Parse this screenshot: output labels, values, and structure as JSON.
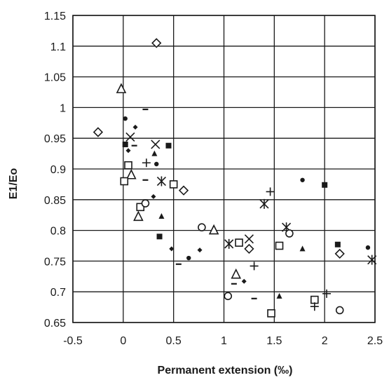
{
  "chart_data": {
    "type": "scatter",
    "xlabel": "Permanent extension (‰)",
    "ylabel": "E1/Eo",
    "xlim": [
      -0.5,
      2.5
    ],
    "ylim": [
      0.65,
      1.15
    ],
    "xticks": [
      "-0.5",
      "0",
      "0.5",
      "1",
      "1.5",
      "2",
      "2.5"
    ],
    "yticks": [
      "0.65",
      "0.7",
      "0.75",
      "0.8",
      "0.85",
      "0.9",
      "0.95",
      "1",
      "1.05",
      "1.1",
      "1.15"
    ],
    "grid": true,
    "legend": "none",
    "colors": {
      "marker": "#1a1a1a",
      "grid": "#1a1a1a",
      "background": "#ffffff"
    },
    "series": [
      {
        "marker": "diamond-open",
        "points": [
          [
            -0.25,
            0.96
          ],
          [
            0.33,
            1.105
          ],
          [
            0.6,
            0.865
          ],
          [
            1.25,
            0.77
          ],
          [
            2.15,
            0.762
          ]
        ]
      },
      {
        "marker": "triangle-open",
        "points": [
          [
            -0.02,
            1.03
          ],
          [
            0.08,
            0.89
          ],
          [
            0.15,
            0.822
          ],
          [
            0.9,
            0.8
          ],
          [
            1.12,
            0.728
          ]
        ]
      },
      {
        "marker": "circle-small-filled",
        "points": [
          [
            0.02,
            0.982
          ],
          [
            0.33,
            0.908
          ],
          [
            0.65,
            0.755
          ],
          [
            1.78,
            0.882
          ],
          [
            2.43,
            0.772
          ]
        ]
      },
      {
        "marker": "diamond-small-filled",
        "points": [
          [
            0.05,
            0.93
          ],
          [
            0.12,
            0.968
          ],
          [
            0.3,
            0.855
          ],
          [
            0.48,
            0.77
          ],
          [
            0.76,
            0.768
          ],
          [
            1.2,
            0.717
          ]
        ]
      },
      {
        "marker": "square-filled",
        "points": [
          [
            0.02,
            0.94
          ],
          [
            0.45,
            0.938
          ],
          [
            0.36,
            0.79
          ],
          [
            2.0,
            0.874
          ],
          [
            2.13,
            0.777
          ]
        ]
      },
      {
        "marker": "square-open",
        "points": [
          [
            0.01,
            0.88
          ],
          [
            0.05,
            0.906
          ],
          [
            0.17,
            0.838
          ],
          [
            0.5,
            0.875
          ],
          [
            1.15,
            0.78
          ],
          [
            1.55,
            0.775
          ],
          [
            1.47,
            0.665
          ],
          [
            1.9,
            0.687
          ]
        ]
      },
      {
        "marker": "x-cross",
        "points": [
          [
            0.07,
            0.952
          ],
          [
            0.32,
            0.94
          ],
          [
            1.25,
            0.786
          ]
        ]
      },
      {
        "marker": "asterisk",
        "points": [
          [
            0.38,
            0.88
          ],
          [
            1.05,
            0.778
          ],
          [
            1.4,
            0.843
          ],
          [
            1.62,
            0.805
          ],
          [
            2.47,
            0.752
          ]
        ]
      },
      {
        "marker": "plus",
        "points": [
          [
            0.23,
            0.91
          ],
          [
            1.3,
            0.742
          ],
          [
            1.46,
            0.863
          ],
          [
            1.9,
            0.676
          ],
          [
            2.02,
            0.697
          ]
        ]
      },
      {
        "marker": "triangle-small-filled",
        "points": [
          [
            0.31,
            0.925
          ],
          [
            0.38,
            0.823
          ],
          [
            1.55,
            0.693
          ],
          [
            1.78,
            0.77
          ]
        ]
      },
      {
        "marker": "circle-open",
        "points": [
          [
            0.22,
            0.844
          ],
          [
            0.78,
            0.805
          ],
          [
            1.04,
            0.693
          ],
          [
            1.65,
            0.795
          ],
          [
            2.15,
            0.67
          ]
        ]
      },
      {
        "marker": "dash",
        "points": [
          [
            0.11,
            0.938
          ],
          [
            0.22,
            0.997
          ],
          [
            0.22,
            0.882
          ],
          [
            0.55,
            0.745
          ],
          [
            1.1,
            0.713
          ],
          [
            1.3,
            0.689
          ]
        ]
      }
    ]
  }
}
